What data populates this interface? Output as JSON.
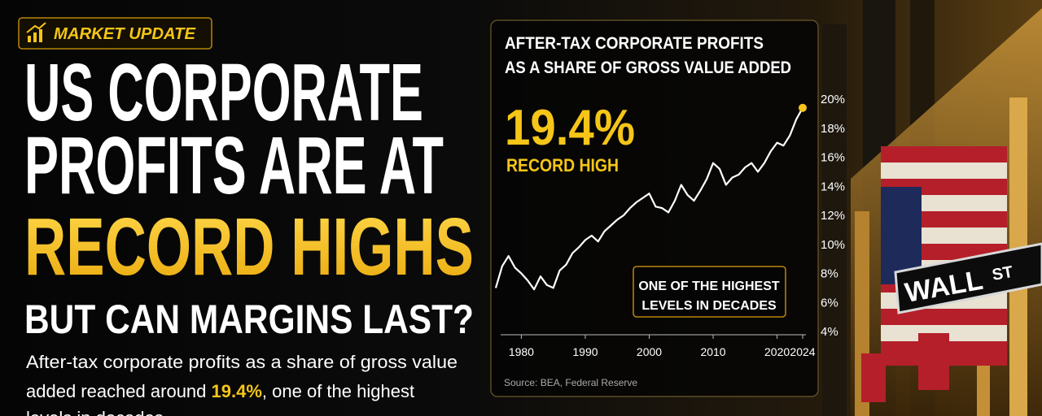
{
  "badge": "MARKET UPDATE",
  "headline": {
    "lines": [
      "US CORPORATE",
      "PROFITS ARE AT"
    ],
    "highlight": "RECORD HIGHS",
    "question": "BUT CAN MARGINS LAST?"
  },
  "body": {
    "line1": "After-tax corporate profits as a share of gross value",
    "line2": [
      "added reached around ",
      "19.4%",
      ", one of the highest"
    ],
    "line3": "levels in decades"
  },
  "sign": {
    "street": "WALL",
    "suffix": "ST"
  },
  "chart_data": {
    "type": "line",
    "title": [
      "AFTER-TAX CORPORATE PROFITS",
      "AS A SHARE OF GROSS VALUE ADDED"
    ],
    "annotations": {
      "value": "19.4%",
      "caption": "RECORD HIGH",
      "box": [
        "ONE OF THE HIGHEST",
        "LEVELS IN DECADES"
      ]
    },
    "source": "Source: BEA, Federal Reserve",
    "x": [
      1976,
      1977,
      1978,
      1979,
      1980,
      1981,
      1982,
      1983,
      1984,
      1985,
      1986,
      1987,
      1988,
      1989,
      1990,
      1991,
      1992,
      1993,
      1994,
      1995,
      1996,
      1997,
      1998,
      1999,
      2000,
      2001,
      2002,
      2003,
      2004,
      2005,
      2006,
      2007,
      2008,
      2009,
      2010,
      2011,
      2012,
      2013,
      2014,
      2015,
      2016,
      2017,
      2018,
      2019,
      2020,
      2021,
      2022,
      2023,
      2024
    ],
    "series": [
      {
        "name": "After-tax corporate profits share",
        "color": "#ffffff",
        "marker_color": "#f5c518",
        "values": [
          7.0,
          8.5,
          9.2,
          8.4,
          8.0,
          7.5,
          6.9,
          7.8,
          7.2,
          7.0,
          8.2,
          8.6,
          9.4,
          9.8,
          10.3,
          10.6,
          10.2,
          10.9,
          11.3,
          11.7,
          12.0,
          12.5,
          12.9,
          13.2,
          13.5,
          12.6,
          12.5,
          12.2,
          13.0,
          14.1,
          13.4,
          13.0,
          13.7,
          14.5,
          15.6,
          15.2,
          14.1,
          14.6,
          14.8,
          15.3,
          15.6,
          15.0,
          15.6,
          16.4,
          17.0,
          16.8,
          17.5,
          18.6,
          19.4
        ]
      }
    ],
    "xlim": [
      1976,
      2024
    ],
    "xticks": [
      1980,
      1990,
      2000,
      2010,
      2020,
      2024
    ],
    "ylim": [
      4,
      20
    ],
    "yticks": [
      {
        "value": 4,
        "label": "4%"
      },
      {
        "value": 6,
        "label": "6%"
      },
      {
        "value": 8,
        "label": "8%"
      },
      {
        "value": 10,
        "label": "10%"
      },
      {
        "value": 12,
        "label": "12%"
      },
      {
        "value": 14,
        "label": "14%"
      },
      {
        "value": 16,
        "label": "16%"
      },
      {
        "value": 18,
        "label": "18%"
      },
      {
        "value": 20,
        "label": "20%"
      }
    ],
    "grid": false
  }
}
